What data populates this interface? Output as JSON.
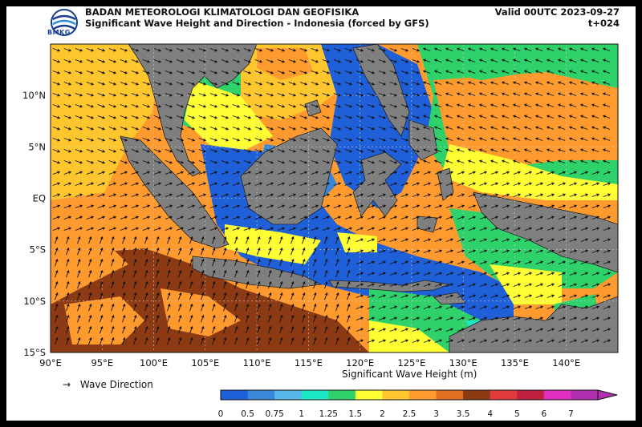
{
  "header": {
    "org_name": "BADAN METEOROLOGI KLIMATOLOGI DAN GEOFISIKA",
    "title": "Significant Wave Height and Direction - Indonesia (forced by GFS)",
    "valid": "Valid 00UTC 2023-09-27",
    "lead": "t+024",
    "logo_text": "BMKG"
  },
  "map": {
    "lon_ticks": [
      "90°E",
      "95°E",
      "100°E",
      "105°E",
      "110°E",
      "115°E",
      "120°E",
      "125°E",
      "130°E",
      "135°E",
      "140°E"
    ],
    "lat_ticks": [
      "10°N",
      "5°N",
      "EQ",
      "5°S",
      "10°S",
      "15°S"
    ],
    "lon_range": [
      90,
      145
    ],
    "lat_range": [
      -15,
      15
    ],
    "land_color": "#7f7f7f",
    "arrow_color": "#111111"
  },
  "legend": {
    "arrow_symbol": "→",
    "wave_direction_label": "Wave Direction",
    "colorbar_title": "Significant Wave Height (m)",
    "colorbar_ticks": [
      "0",
      "0.5",
      "0.75",
      "1",
      "1.25",
      "1.5",
      "2",
      "2.5",
      "3",
      "3.5",
      "4",
      "5",
      "6",
      "7"
    ],
    "colorbar_colors": [
      "#1f5fd8",
      "#3a86d8",
      "#57b5e8",
      "#1de8c5",
      "#2fd16a",
      "#ffff33",
      "#ffc62e",
      "#ff9a2e",
      "#e07020",
      "#8b3a14",
      "#e03a3a",
      "#c02040",
      "#e030c0",
      "#b030b0"
    ]
  }
}
